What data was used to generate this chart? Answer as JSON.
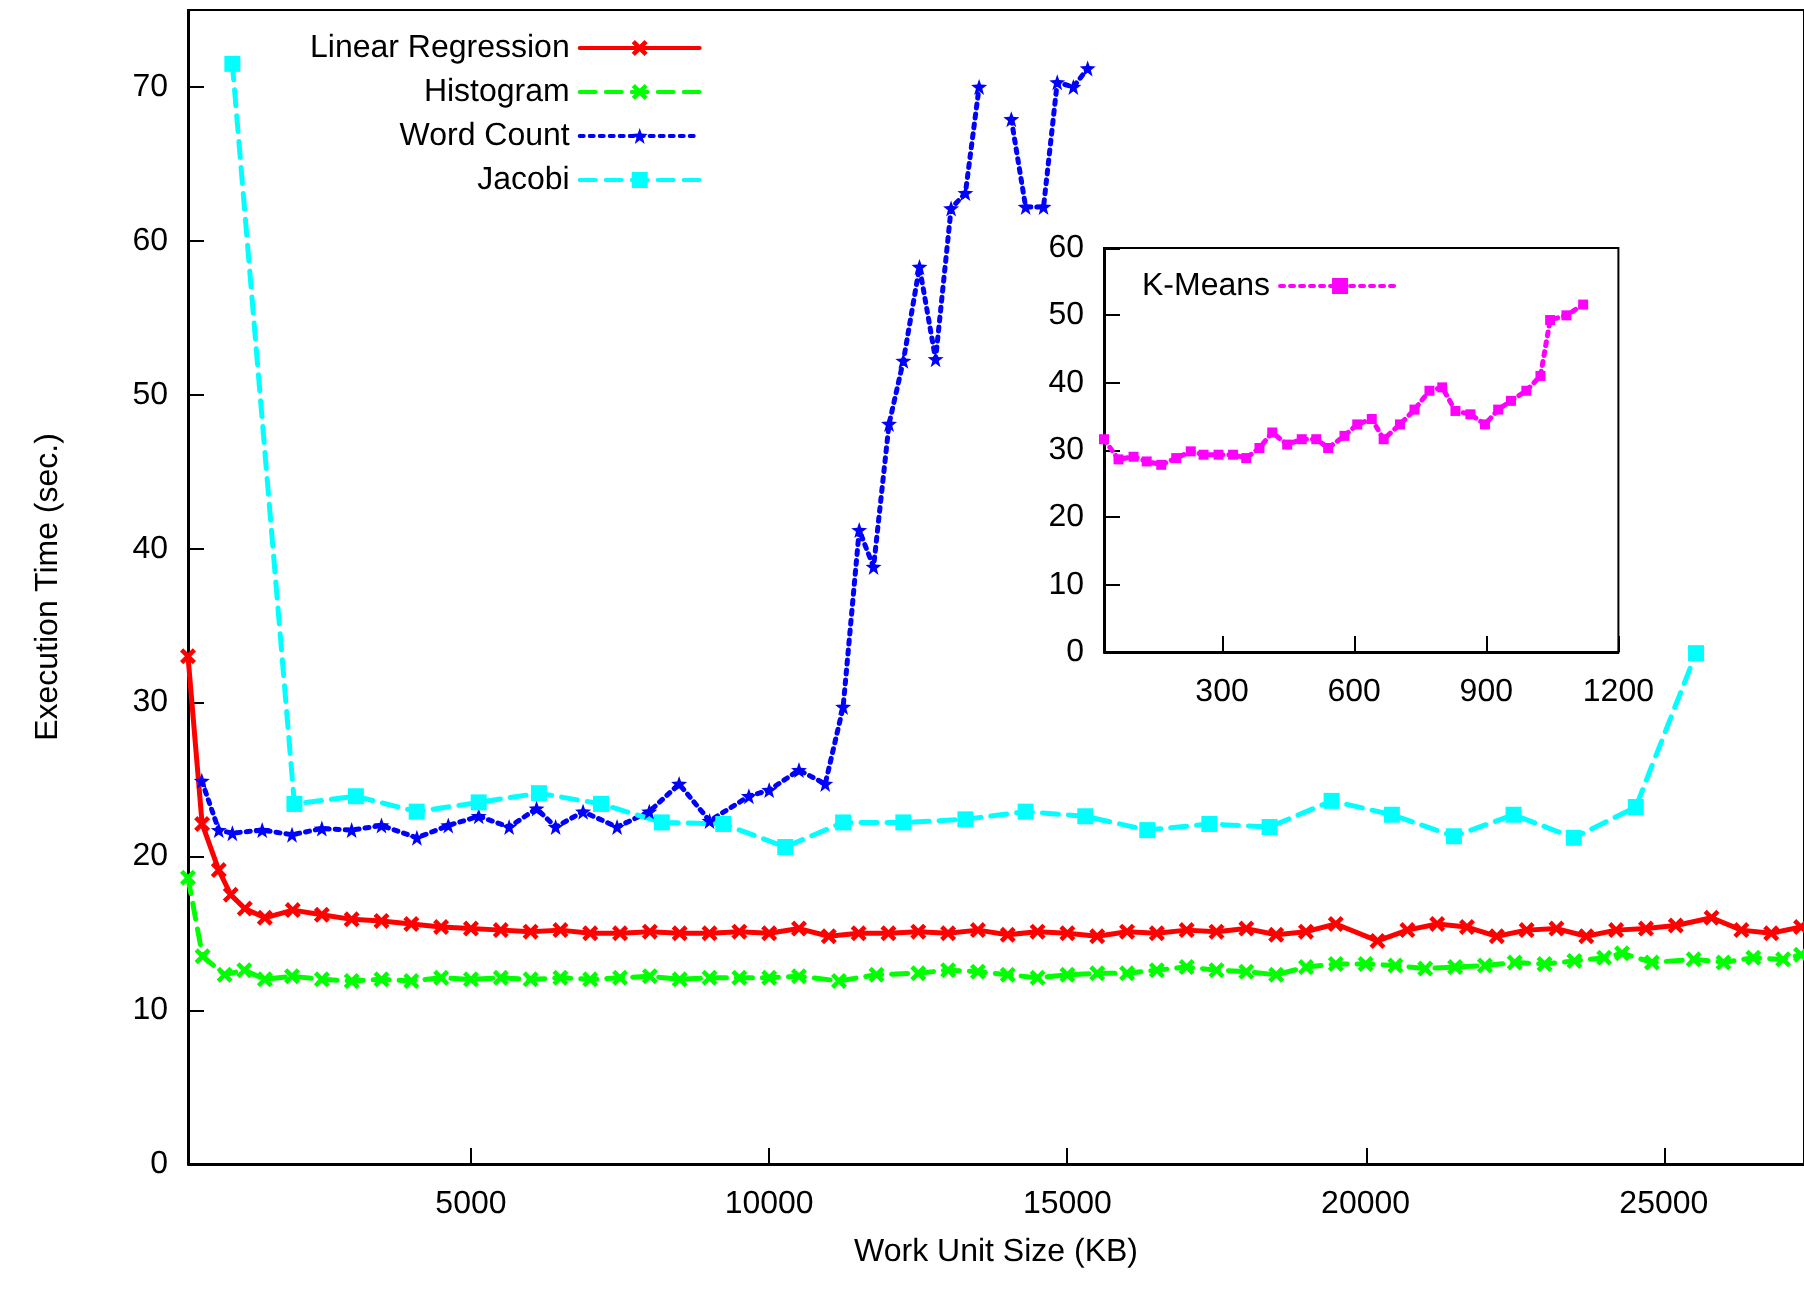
{
  "chart_data": [
    {
      "type": "line",
      "xlabel": "Work Unit Size (KB)",
      "ylabel": "Execution Time (sec.)",
      "xlim": [
        256,
        27350
      ],
      "xticks": [
        5000,
        10000,
        15000,
        20000,
        25000
      ],
      "ylim": [
        0,
        75
      ],
      "yticks": [
        0,
        10,
        20,
        30,
        40,
        50,
        60,
        70
      ],
      "grid": false,
      "legend": "top left",
      "series": [
        {
          "name": "Linear Regression",
          "color": "#ff0000",
          "marker": "cross",
          "line_style": "solid",
          "x": [
            256,
            493,
            772,
            973,
            1208,
            1544,
            2013,
            2500,
            3000,
            3500,
            4000,
            4500,
            5000,
            5500,
            6000,
            6500,
            7000,
            7500,
            8000,
            8500,
            9000,
            9500,
            10000,
            10500,
            11000,
            11500,
            12000,
            12500,
            13000,
            13500,
            14000,
            14500,
            15000,
            15500,
            16000,
            16500,
            17000,
            17500,
            18000,
            18500,
            19000,
            19500,
            20200,
            20700,
            21200,
            21700,
            22200,
            22700,
            23200,
            23700,
            24200,
            24700,
            25200,
            25800,
            26300,
            26800,
            27300
          ],
          "values": [
            33,
            22.1,
            19.1,
            17.5,
            16.6,
            16.0,
            16.5,
            16.2,
            15.9,
            15.8,
            15.6,
            15.4,
            15.3,
            15.2,
            15.1,
            15.2,
            15.0,
            15.0,
            15.1,
            15.0,
            15.0,
            15.1,
            15.0,
            15.3,
            14.8,
            15.0,
            15.0,
            15.1,
            15.0,
            15.2,
            14.9,
            15.1,
            15.0,
            14.8,
            15.1,
            15.0,
            15.2,
            15.1,
            15.3,
            14.9,
            15.1,
            15.6,
            14.5,
            15.2,
            15.6,
            15.4,
            14.8,
            15.2,
            15.3,
            14.8,
            15.2,
            15.3,
            15.5,
            16.0,
            15.2,
            15.0,
            15.4
          ]
        },
        {
          "name": "Histogram",
          "color": "#00ff00",
          "marker": "cross",
          "line_style": "dashed",
          "x": [
            256,
            500,
            870,
            1200,
            1544,
            2000,
            2500,
            3000,
            3500,
            4000,
            4500,
            5000,
            5500,
            6000,
            6500,
            7000,
            7500,
            8000,
            8500,
            9000,
            9500,
            10000,
            10500,
            11170,
            11800,
            12500,
            13000,
            13500,
            14000,
            14500,
            15000,
            15500,
            16000,
            16500,
            17000,
            17500,
            18000,
            18500,
            19000,
            19500,
            20000,
            20500,
            21000,
            21500,
            22000,
            22500,
            23000,
            23500,
            24000,
            24300,
            24800,
            25500,
            26000,
            26500,
            27000,
            27300
          ],
          "values": [
            18.6,
            13.5,
            12.3,
            12.6,
            12.0,
            12.2,
            12.0,
            11.9,
            12.0,
            11.9,
            12.1,
            12.0,
            12.1,
            12.0,
            12.1,
            12.0,
            12.1,
            12.2,
            12.0,
            12.1,
            12.1,
            12.1,
            12.2,
            11.9,
            12.3,
            12.4,
            12.6,
            12.5,
            12.3,
            12.1,
            12.3,
            12.4,
            12.4,
            12.6,
            12.8,
            12.6,
            12.5,
            12.3,
            12.8,
            13.0,
            13.0,
            12.9,
            12.7,
            12.8,
            12.9,
            13.1,
            13.0,
            13.2,
            13.4,
            13.7,
            13.1,
            13.3,
            13.1,
            13.4,
            13.3,
            13.6
          ]
        },
        {
          "name": "Word Count",
          "color": "#0000ff",
          "marker": "star",
          "line_style": "dotted",
          "x": [
            487,
            772,
            1000,
            1500,
            2000,
            2500,
            3000,
            3500,
            4094,
            4620,
            5130,
            5640,
            6100,
            6420,
            6880,
            7450,
            7990,
            8490,
            9000,
            9660,
            10000,
            10500,
            10940,
            11240,
            11510,
            11750,
            12010,
            12250,
            12520,
            12790,
            13050,
            13290,
            13520,
            13790,
            14060,
            14300,
            14600,
            14830,
            15100,
            15340
          ],
          "values": [
            24.9,
            21.7,
            21.5,
            21.7,
            21.4,
            21.8,
            21.7,
            22.0,
            21.2,
            22.0,
            22.6,
            21.9,
            23.1,
            21.9,
            22.9,
            21.9,
            22.9,
            24.7,
            22.3,
            23.9,
            24.3,
            25.6,
            24.7,
            29.7,
            41.2,
            38.8,
            48.1,
            52.2,
            58.3,
            52.3,
            62.1,
            63.1,
            70.0,
            null,
            67.9,
            62.2,
            62.2,
            70.3,
            70.0,
            71.2
          ]
        },
        {
          "name": "Jacobi",
          "color": "#00ffff",
          "marker": "square",
          "line_style": "dashed",
          "x": [
            1000,
            2040,
            3070,
            4090,
            5130,
            6140,
            7180,
            8200,
            9230,
            10270,
            11240,
            12250,
            13290,
            14300,
            15300,
            16340,
            17380,
            18390,
            19430,
            20440,
            21480,
            22480,
            23490,
            24530,
            25540
          ],
          "values": [
            71.5,
            23.4,
            23.9,
            22.9,
            23.5,
            24.1,
            23.4,
            22.2,
            22.1,
            20.6,
            22.2,
            22.2,
            22.4,
            22.9,
            22.6,
            21.7,
            22.1,
            21.9,
            23.6,
            22.7,
            21.3,
            22.7,
            21.2,
            23.2,
            33.2
          ]
        }
      ]
    },
    {
      "type": "line",
      "xlim": [
        32,
        1200
      ],
      "xticks": [
        300,
        600,
        900,
        1200
      ],
      "ylim": [
        0,
        60
      ],
      "yticks": [
        0,
        10,
        20,
        30,
        40,
        50,
        60
      ],
      "grid": false,
      "legend": "top left",
      "series": [
        {
          "name": "K-Means",
          "color": "#ff00ff",
          "marker": "square",
          "line_style": "dotted",
          "x": [
            32,
            65,
            99,
            129,
            162,
            196,
            229,
            258,
            292,
            325,
            355,
            385,
            414,
            448,
            481,
            514,
            541,
            578,
            607,
            640,
            667,
            704,
            737,
            771,
            800,
            830,
            864,
            897,
            927,
            956,
            991,
            1023,
            1045,
            1082,
            1120
          ],
          "values": [
            31.6,
            28.6,
            29.0,
            28.3,
            27.8,
            28.8,
            29.8,
            29.3,
            29.3,
            29.3,
            28.8,
            30.3,
            32.6,
            30.8,
            31.6,
            31.6,
            30.3,
            32.1,
            33.8,
            34.6,
            31.6,
            33.8,
            36.0,
            38.8,
            39.3,
            35.8,
            35.3,
            33.8,
            36.0,
            37.3,
            38.8,
            41.0,
            49.3,
            50.0,
            51.6
          ]
        }
      ]
    }
  ]
}
